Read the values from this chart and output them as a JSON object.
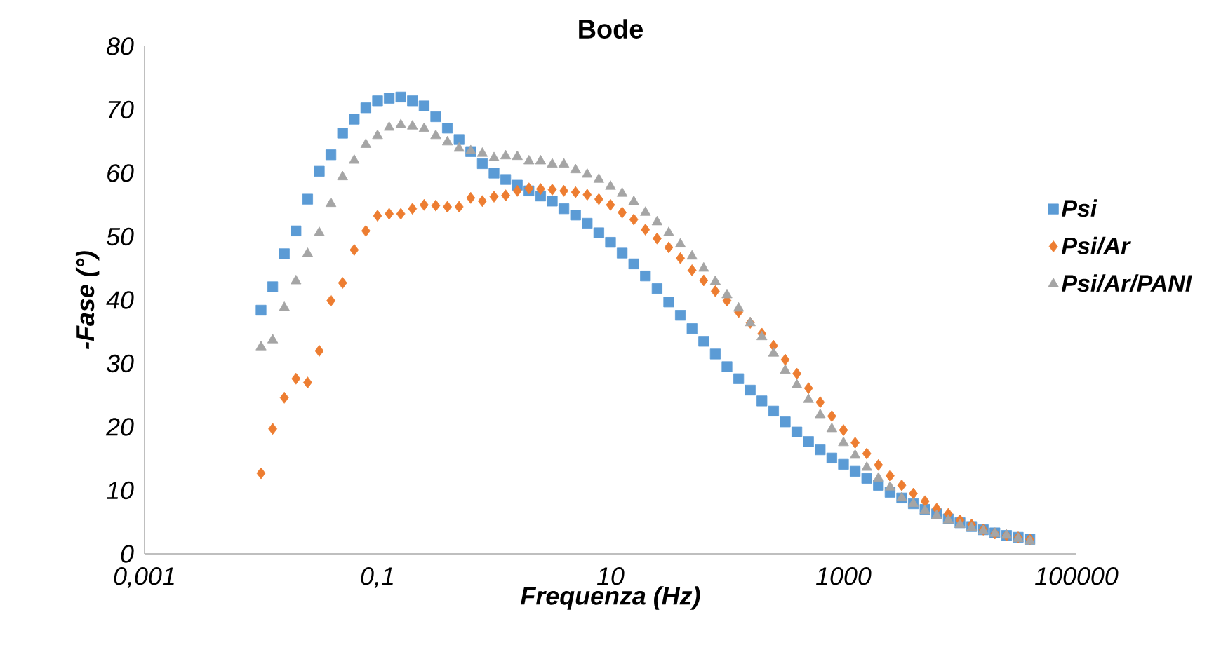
{
  "chart_data": {
    "type": "scatter",
    "title": "Bode",
    "xlabel": "Frequenza (Hz)",
    "ylabel": "-Fase (°)",
    "log": "x",
    "xlim": [
      0.001,
      100000
    ],
    "ylim": [
      0,
      80
    ],
    "xticks": [
      {
        "value": 0.001,
        "label": "0,001"
      },
      {
        "value": 0.1,
        "label": "0,1"
      },
      10,
      1000,
      100000
    ],
    "yticks": [
      0,
      10,
      20,
      30,
      40,
      50,
      60,
      70,
      80
    ],
    "grid": false,
    "legend": "right",
    "x": [
      0.01,
      0.01259,
      0.01585,
      0.01995,
      0.02512,
      0.03162,
      0.03981,
      0.05012,
      0.0631,
      0.07943,
      0.1,
      0.1259,
      0.1585,
      0.1995,
      0.2512,
      0.3162,
      0.3981,
      0.5012,
      0.631,
      0.7943,
      1,
      1.259,
      1.585,
      1.995,
      2.512,
      3.162,
      3.981,
      5.012,
      6.31,
      7.943,
      10,
      12.59,
      15.85,
      19.95,
      25.12,
      31.62,
      39.81,
      50.12,
      63.1,
      79.43,
      100,
      125.9,
      158.5,
      199.5,
      251.2,
      316.2,
      398.1,
      501.2,
      631,
      794.3,
      1000,
      1259,
      1585,
      1995,
      2512,
      3162,
      3981,
      5012,
      6310,
      7943,
      10000,
      12590,
      15850,
      19950,
      25120,
      31620,
      39810
    ],
    "series": [
      {
        "name": "Psi",
        "color": "#5b9bd5",
        "marker": "square",
        "values": [
          38.4,
          42.1,
          47.3,
          50.9,
          55.9,
          60.3,
          62.9,
          66.3,
          68.5,
          70.3,
          71.4,
          71.8,
          72.0,
          71.4,
          70.6,
          68.9,
          67.1,
          65.3,
          63.4,
          61.5,
          60.0,
          59.0,
          58.1,
          57.2,
          56.4,
          55.6,
          54.4,
          53.4,
          52.1,
          50.6,
          49.1,
          47.4,
          45.7,
          43.8,
          41.8,
          39.7,
          37.6,
          35.5,
          33.5,
          31.5,
          29.5,
          27.6,
          25.8,
          24.1,
          22.5,
          20.8,
          19.2,
          17.7,
          16.4,
          15.1,
          14.1,
          13.0,
          11.9,
          10.8,
          9.7,
          8.8,
          7.9,
          7.0,
          6.3,
          5.5,
          4.9,
          4.3,
          3.8,
          3.3,
          2.9,
          2.6,
          2.3
        ]
      },
      {
        "name": "Psi/Ar",
        "color": "#ed7d31",
        "marker": "diamond",
        "values": [
          12.7,
          19.7,
          24.6,
          27.6,
          27.0,
          32.0,
          39.9,
          42.7,
          47.9,
          50.9,
          53.3,
          53.6,
          53.6,
          54.4,
          55.0,
          54.9,
          54.7,
          54.7,
          56.1,
          55.6,
          56.3,
          56.5,
          57.2,
          57.6,
          57.5,
          57.4,
          57.2,
          57.0,
          56.6,
          55.9,
          55.0,
          53.8,
          52.7,
          51.1,
          49.7,
          48.3,
          46.6,
          44.7,
          43.1,
          41.4,
          39.9,
          38.1,
          36.4,
          34.7,
          32.8,
          30.6,
          28.4,
          26.1,
          23.9,
          21.7,
          19.5,
          17.5,
          15.8,
          14.0,
          12.3,
          10.8,
          9.5,
          8.3,
          7.1,
          6.3,
          5.3,
          4.6,
          3.8,
          3.2,
          2.9,
          2.6,
          2.3
        ]
      },
      {
        "name": "Psi/Ar/PANI",
        "color": "#a5a5a5",
        "marker": "triangle",
        "values": [
          32.6,
          33.7,
          38.8,
          43.0,
          47.3,
          50.6,
          55.2,
          59.4,
          62.0,
          64.5,
          65.9,
          67.2,
          67.6,
          67.4,
          67.0,
          65.9,
          64.9,
          63.9,
          63.5,
          63.1,
          62.4,
          62.7,
          62.6,
          61.9,
          61.9,
          61.4,
          61.4,
          60.5,
          59.8,
          59.0,
          57.9,
          56.8,
          55.5,
          53.8,
          52.3,
          50.6,
          48.8,
          46.9,
          45.0,
          42.9,
          40.8,
          38.7,
          36.4,
          34.2,
          31.6,
          28.9,
          26.6,
          24.3,
          21.9,
          19.7,
          17.5,
          15.5,
          13.6,
          11.9,
          10.5,
          8.8,
          7.9,
          6.8,
          6.0,
          5.3,
          4.6,
          4.1,
          3.6,
          3.2,
          2.9,
          2.4,
          2.0
        ]
      }
    ]
  }
}
